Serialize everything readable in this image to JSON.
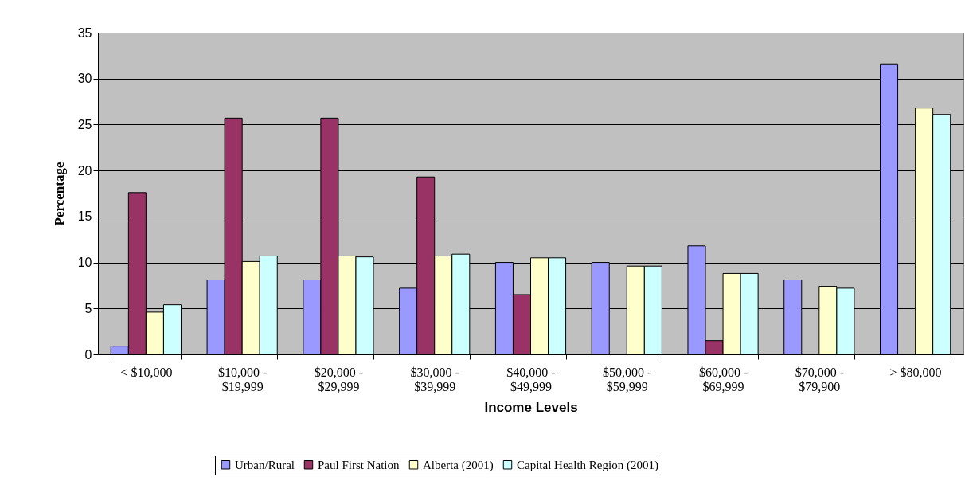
{
  "chart_data": {
    "type": "bar",
    "xlabel": "Income Levels",
    "ylabel": "Percentage",
    "categories": [
      "< $10,000",
      "$10,000 - $19,999",
      "$20,000 - $29,999",
      "$30,000 - $39,999",
      "$40,000 - $49,999",
      "$50,000 - $59,999",
      "$60,000 - $69,999",
      "$70,000 - $79,900",
      "> $80,000"
    ],
    "series": [
      {
        "name": "Urban/Rural",
        "color": "#9999ff",
        "values": [
          0.9,
          8.1,
          8.1,
          7.2,
          10.0,
          10.0,
          11.8,
          8.1,
          31.6
        ]
      },
      {
        "name": "Paul First Nation",
        "color": "#993366",
        "values": [
          17.6,
          25.7,
          25.7,
          19.3,
          6.5,
          null,
          1.5,
          null,
          null
        ]
      },
      {
        "name": "Alberta (2001)",
        "color": "#ffffcc",
        "values": [
          4.6,
          10.1,
          10.7,
          10.7,
          10.5,
          9.6,
          8.8,
          7.4,
          26.8
        ]
      },
      {
        "name": "Capital Health Region (2001)",
        "color": "#ccffff",
        "values": [
          5.4,
          10.7,
          10.6,
          10.9,
          10.5,
          9.6,
          8.8,
          7.2,
          26.1
        ]
      }
    ],
    "ylim": [
      0,
      35
    ],
    "yticks": [
      0,
      5,
      10,
      15,
      20,
      25,
      30,
      35
    ],
    "grid": "y",
    "legend": "bottom"
  }
}
